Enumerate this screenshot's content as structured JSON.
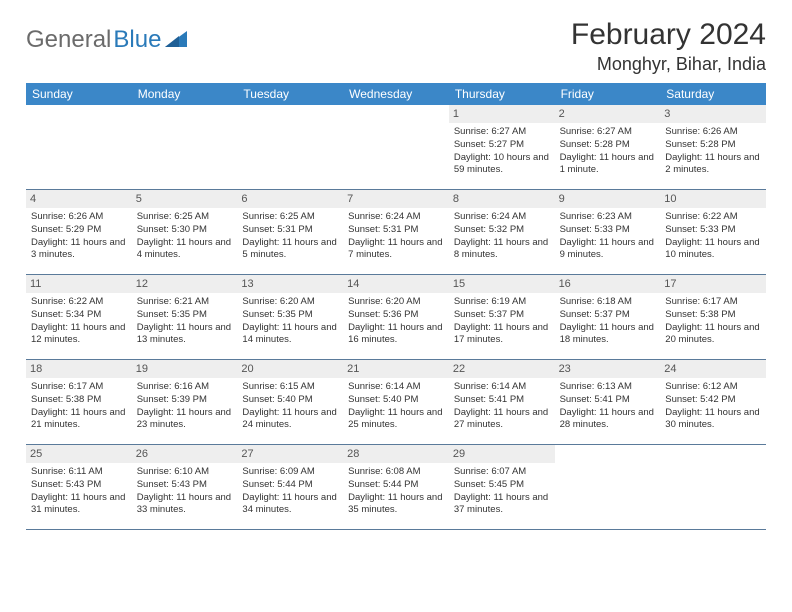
{
  "logo": {
    "part1": "General",
    "part2": "Blue"
  },
  "title": "February 2024",
  "location": "Monghyr, Bihar, India",
  "colors": {
    "header_bg": "#3b87c8",
    "daynum_bg": "#eeeeee",
    "rule": "#5a7a9a",
    "logo_gray": "#6b6b6b",
    "logo_blue": "#2a7ab9"
  },
  "weekdays": [
    "Sunday",
    "Monday",
    "Tuesday",
    "Wednesday",
    "Thursday",
    "Friday",
    "Saturday"
  ],
  "weeks": [
    [
      {
        "n": "",
        "sr": "",
        "ss": "",
        "dl": ""
      },
      {
        "n": "",
        "sr": "",
        "ss": "",
        "dl": ""
      },
      {
        "n": "",
        "sr": "",
        "ss": "",
        "dl": ""
      },
      {
        "n": "",
        "sr": "",
        "ss": "",
        "dl": ""
      },
      {
        "n": "1",
        "sr": "Sunrise: 6:27 AM",
        "ss": "Sunset: 5:27 PM",
        "dl": "Daylight: 10 hours and 59 minutes."
      },
      {
        "n": "2",
        "sr": "Sunrise: 6:27 AM",
        "ss": "Sunset: 5:28 PM",
        "dl": "Daylight: 11 hours and 1 minute."
      },
      {
        "n": "3",
        "sr": "Sunrise: 6:26 AM",
        "ss": "Sunset: 5:28 PM",
        "dl": "Daylight: 11 hours and 2 minutes."
      }
    ],
    [
      {
        "n": "4",
        "sr": "Sunrise: 6:26 AM",
        "ss": "Sunset: 5:29 PM",
        "dl": "Daylight: 11 hours and 3 minutes."
      },
      {
        "n": "5",
        "sr": "Sunrise: 6:25 AM",
        "ss": "Sunset: 5:30 PM",
        "dl": "Daylight: 11 hours and 4 minutes."
      },
      {
        "n": "6",
        "sr": "Sunrise: 6:25 AM",
        "ss": "Sunset: 5:31 PM",
        "dl": "Daylight: 11 hours and 5 minutes."
      },
      {
        "n": "7",
        "sr": "Sunrise: 6:24 AM",
        "ss": "Sunset: 5:31 PM",
        "dl": "Daylight: 11 hours and 7 minutes."
      },
      {
        "n": "8",
        "sr": "Sunrise: 6:24 AM",
        "ss": "Sunset: 5:32 PM",
        "dl": "Daylight: 11 hours and 8 minutes."
      },
      {
        "n": "9",
        "sr": "Sunrise: 6:23 AM",
        "ss": "Sunset: 5:33 PM",
        "dl": "Daylight: 11 hours and 9 minutes."
      },
      {
        "n": "10",
        "sr": "Sunrise: 6:22 AM",
        "ss": "Sunset: 5:33 PM",
        "dl": "Daylight: 11 hours and 10 minutes."
      }
    ],
    [
      {
        "n": "11",
        "sr": "Sunrise: 6:22 AM",
        "ss": "Sunset: 5:34 PM",
        "dl": "Daylight: 11 hours and 12 minutes."
      },
      {
        "n": "12",
        "sr": "Sunrise: 6:21 AM",
        "ss": "Sunset: 5:35 PM",
        "dl": "Daylight: 11 hours and 13 minutes."
      },
      {
        "n": "13",
        "sr": "Sunrise: 6:20 AM",
        "ss": "Sunset: 5:35 PM",
        "dl": "Daylight: 11 hours and 14 minutes."
      },
      {
        "n": "14",
        "sr": "Sunrise: 6:20 AM",
        "ss": "Sunset: 5:36 PM",
        "dl": "Daylight: 11 hours and 16 minutes."
      },
      {
        "n": "15",
        "sr": "Sunrise: 6:19 AM",
        "ss": "Sunset: 5:37 PM",
        "dl": "Daylight: 11 hours and 17 minutes."
      },
      {
        "n": "16",
        "sr": "Sunrise: 6:18 AM",
        "ss": "Sunset: 5:37 PM",
        "dl": "Daylight: 11 hours and 18 minutes."
      },
      {
        "n": "17",
        "sr": "Sunrise: 6:17 AM",
        "ss": "Sunset: 5:38 PM",
        "dl": "Daylight: 11 hours and 20 minutes."
      }
    ],
    [
      {
        "n": "18",
        "sr": "Sunrise: 6:17 AM",
        "ss": "Sunset: 5:38 PM",
        "dl": "Daylight: 11 hours and 21 minutes."
      },
      {
        "n": "19",
        "sr": "Sunrise: 6:16 AM",
        "ss": "Sunset: 5:39 PM",
        "dl": "Daylight: 11 hours and 23 minutes."
      },
      {
        "n": "20",
        "sr": "Sunrise: 6:15 AM",
        "ss": "Sunset: 5:40 PM",
        "dl": "Daylight: 11 hours and 24 minutes."
      },
      {
        "n": "21",
        "sr": "Sunrise: 6:14 AM",
        "ss": "Sunset: 5:40 PM",
        "dl": "Daylight: 11 hours and 25 minutes."
      },
      {
        "n": "22",
        "sr": "Sunrise: 6:14 AM",
        "ss": "Sunset: 5:41 PM",
        "dl": "Daylight: 11 hours and 27 minutes."
      },
      {
        "n": "23",
        "sr": "Sunrise: 6:13 AM",
        "ss": "Sunset: 5:41 PM",
        "dl": "Daylight: 11 hours and 28 minutes."
      },
      {
        "n": "24",
        "sr": "Sunrise: 6:12 AM",
        "ss": "Sunset: 5:42 PM",
        "dl": "Daylight: 11 hours and 30 minutes."
      }
    ],
    [
      {
        "n": "25",
        "sr": "Sunrise: 6:11 AM",
        "ss": "Sunset: 5:43 PM",
        "dl": "Daylight: 11 hours and 31 minutes."
      },
      {
        "n": "26",
        "sr": "Sunrise: 6:10 AM",
        "ss": "Sunset: 5:43 PM",
        "dl": "Daylight: 11 hours and 33 minutes."
      },
      {
        "n": "27",
        "sr": "Sunrise: 6:09 AM",
        "ss": "Sunset: 5:44 PM",
        "dl": "Daylight: 11 hours and 34 minutes."
      },
      {
        "n": "28",
        "sr": "Sunrise: 6:08 AM",
        "ss": "Sunset: 5:44 PM",
        "dl": "Daylight: 11 hours and 35 minutes."
      },
      {
        "n": "29",
        "sr": "Sunrise: 6:07 AM",
        "ss": "Sunset: 5:45 PM",
        "dl": "Daylight: 11 hours and 37 minutes."
      },
      {
        "n": "",
        "sr": "",
        "ss": "",
        "dl": ""
      },
      {
        "n": "",
        "sr": "",
        "ss": "",
        "dl": ""
      }
    ]
  ]
}
